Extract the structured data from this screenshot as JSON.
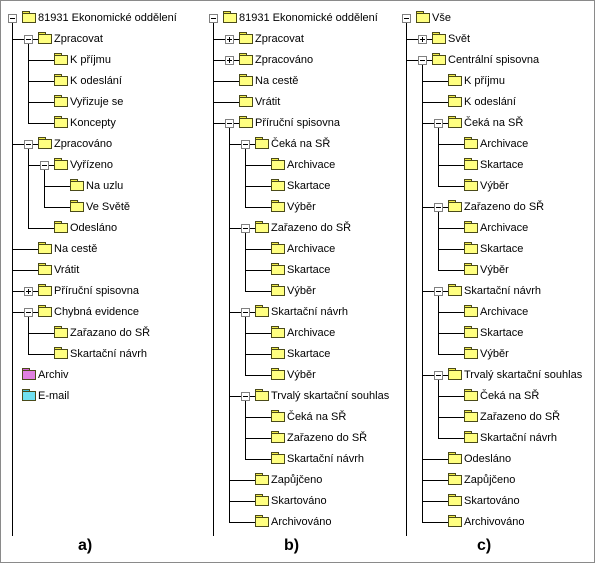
{
  "panels": [
    {
      "caption": "a)",
      "nodes": [
        {
          "label": "81931 Ekonomické oddělení",
          "depth": 0,
          "toggle": "minus",
          "color": "yellow"
        },
        {
          "label": "Zpracovat",
          "depth": 1,
          "toggle": "minus",
          "color": "yellow"
        },
        {
          "label": "K příjmu",
          "depth": 2,
          "toggle": null,
          "color": "yellow"
        },
        {
          "label": "K odeslání",
          "depth": 2,
          "toggle": null,
          "color": "yellow"
        },
        {
          "label": "Vyřizuje se",
          "depth": 2,
          "toggle": null,
          "color": "yellow"
        },
        {
          "label": "Koncepty",
          "depth": 2,
          "toggle": null,
          "color": "yellow"
        },
        {
          "label": "Zpracováno",
          "depth": 1,
          "toggle": "minus",
          "color": "yellow"
        },
        {
          "label": "Vyřízeno",
          "depth": 2,
          "toggle": "minus",
          "color": "yellow"
        },
        {
          "label": "Na uzlu",
          "depth": 3,
          "toggle": null,
          "color": "yellow"
        },
        {
          "label": "Ve Světě",
          "depth": 3,
          "toggle": null,
          "color": "yellow"
        },
        {
          "label": "Odesláno",
          "depth": 2,
          "toggle": null,
          "color": "yellow"
        },
        {
          "label": "Na cestě",
          "depth": 1,
          "toggle": null,
          "color": "yellow"
        },
        {
          "label": "Vrátit",
          "depth": 1,
          "toggle": null,
          "color": "yellow"
        },
        {
          "label": "Příruční spisovna",
          "depth": 1,
          "toggle": "plus",
          "color": "yellow"
        },
        {
          "label": "Chybná evidence",
          "depth": 1,
          "toggle": "minus",
          "color": "yellow"
        },
        {
          "label": "Zařazano do SŘ",
          "depth": 2,
          "toggle": null,
          "color": "yellow"
        },
        {
          "label": "Skartační návrh",
          "depth": 2,
          "toggle": null,
          "color": "yellow"
        },
        {
          "label": "Archiv",
          "depth": 0,
          "toggle": null,
          "color": "pink"
        },
        {
          "label": "E-mail",
          "depth": 0,
          "toggle": null,
          "color": "cyan"
        }
      ]
    },
    {
      "caption": "b)",
      "nodes": [
        {
          "label": "81931 Ekonomické oddělení",
          "depth": 0,
          "toggle": "minus",
          "color": "yellow"
        },
        {
          "label": "Zpracovat",
          "depth": 1,
          "toggle": "plus",
          "color": "yellow"
        },
        {
          "label": "Zpracováno",
          "depth": 1,
          "toggle": "plus",
          "color": "yellow"
        },
        {
          "label": "Na cestě",
          "depth": 1,
          "toggle": null,
          "color": "yellow"
        },
        {
          "label": "Vrátit",
          "depth": 1,
          "toggle": null,
          "color": "yellow"
        },
        {
          "label": "Příruční spisovna",
          "depth": 1,
          "toggle": "minus",
          "color": "yellow"
        },
        {
          "label": "Čeká na SŘ",
          "depth": 2,
          "toggle": "minus",
          "color": "yellow"
        },
        {
          "label": "Archivace",
          "depth": 3,
          "toggle": null,
          "color": "yellow"
        },
        {
          "label": "Skartace",
          "depth": 3,
          "toggle": null,
          "color": "yellow"
        },
        {
          "label": "Výběr",
          "depth": 3,
          "toggle": null,
          "color": "yellow"
        },
        {
          "label": "Zařazeno do SŘ",
          "depth": 2,
          "toggle": "minus",
          "color": "yellow"
        },
        {
          "label": "Archivace",
          "depth": 3,
          "toggle": null,
          "color": "yellow"
        },
        {
          "label": "Skartace",
          "depth": 3,
          "toggle": null,
          "color": "yellow"
        },
        {
          "label": "Výběr",
          "depth": 3,
          "toggle": null,
          "color": "yellow"
        },
        {
          "label": "Skartační návrh",
          "depth": 2,
          "toggle": "minus",
          "color": "yellow"
        },
        {
          "label": "Archivace",
          "depth": 3,
          "toggle": null,
          "color": "yellow"
        },
        {
          "label": "Skartace",
          "depth": 3,
          "toggle": null,
          "color": "yellow"
        },
        {
          "label": "Výběr",
          "depth": 3,
          "toggle": null,
          "color": "yellow"
        },
        {
          "label": "Trvalý skartační souhlas",
          "depth": 2,
          "toggle": "minus",
          "color": "yellow"
        },
        {
          "label": "Čeká na SŘ",
          "depth": 3,
          "toggle": null,
          "color": "yellow"
        },
        {
          "label": "Zařazeno do SŘ",
          "depth": 3,
          "toggle": null,
          "color": "yellow"
        },
        {
          "label": "Skartační návrh",
          "depth": 3,
          "toggle": null,
          "color": "yellow"
        },
        {
          "label": "Zapůjčeno",
          "depth": 2,
          "toggle": null,
          "color": "yellow"
        },
        {
          "label": "Skartováno",
          "depth": 2,
          "toggle": null,
          "color": "yellow"
        },
        {
          "label": "Archivováno",
          "depth": 2,
          "toggle": null,
          "color": "yellow"
        }
      ]
    },
    {
      "caption": "c)",
      "nodes": [
        {
          "label": "Vše",
          "depth": 0,
          "toggle": "minus",
          "color": "yellow"
        },
        {
          "label": "Svět",
          "depth": 1,
          "toggle": "plus",
          "color": "yellow"
        },
        {
          "label": "Centrální spisovna",
          "depth": 1,
          "toggle": "minus",
          "color": "yellow"
        },
        {
          "label": "K příjmu",
          "depth": 2,
          "toggle": null,
          "color": "yellow"
        },
        {
          "label": "K odeslání",
          "depth": 2,
          "toggle": null,
          "color": "yellow"
        },
        {
          "label": "Čeká na SŘ",
          "depth": 2,
          "toggle": "minus",
          "color": "yellow"
        },
        {
          "label": "Archivace",
          "depth": 3,
          "toggle": null,
          "color": "yellow"
        },
        {
          "label": "Skartace",
          "depth": 3,
          "toggle": null,
          "color": "yellow"
        },
        {
          "label": "Výběr",
          "depth": 3,
          "toggle": null,
          "color": "yellow"
        },
        {
          "label": "Zařazeno do SŘ",
          "depth": 2,
          "toggle": "minus",
          "color": "yellow"
        },
        {
          "label": "Archivace",
          "depth": 3,
          "toggle": null,
          "color": "yellow"
        },
        {
          "label": "Skartace",
          "depth": 3,
          "toggle": null,
          "color": "yellow"
        },
        {
          "label": "Výběr",
          "depth": 3,
          "toggle": null,
          "color": "yellow"
        },
        {
          "label": "Skartační návrh",
          "depth": 2,
          "toggle": "minus",
          "color": "yellow"
        },
        {
          "label": "Archivace",
          "depth": 3,
          "toggle": null,
          "color": "yellow"
        },
        {
          "label": "Skartace",
          "depth": 3,
          "toggle": null,
          "color": "yellow"
        },
        {
          "label": "Výběr",
          "depth": 3,
          "toggle": null,
          "color": "yellow"
        },
        {
          "label": "Trvalý skartační souhlas",
          "depth": 2,
          "toggle": "minus",
          "color": "yellow"
        },
        {
          "label": "Čeká na SŘ",
          "depth": 3,
          "toggle": null,
          "color": "yellow"
        },
        {
          "label": "Zařazeno do SŘ",
          "depth": 3,
          "toggle": null,
          "color": "yellow"
        },
        {
          "label": "Skartační návrh",
          "depth": 3,
          "toggle": null,
          "color": "yellow"
        },
        {
          "label": "Odesláno",
          "depth": 2,
          "toggle": null,
          "color": "yellow"
        },
        {
          "label": "Zapůjčeno",
          "depth": 2,
          "toggle": null,
          "color": "yellow"
        },
        {
          "label": "Skartováno",
          "depth": 2,
          "toggle": null,
          "color": "yellow"
        },
        {
          "label": "Archivováno",
          "depth": 2,
          "toggle": null,
          "color": "yellow"
        }
      ]
    }
  ]
}
